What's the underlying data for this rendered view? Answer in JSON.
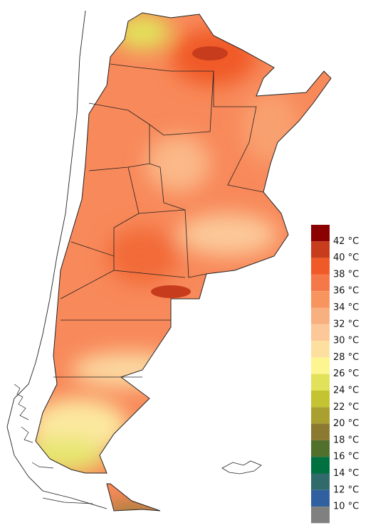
{
  "legend": {
    "labels": [
      "42 °C",
      "40 °C",
      "38 °C",
      "36 °C",
      "34 °C",
      "32 °C",
      "30 °C",
      "28 °C",
      "26 °C",
      "24 °C",
      "22 °C",
      "20 °C",
      "18 °C",
      "16 °C",
      "14 °C",
      "12 °C",
      "10 °C"
    ],
    "colors": [
      "#8b0000",
      "#c83c1e",
      "#f05a28",
      "#f57848",
      "#f8955f",
      "#f9b080",
      "#fcc898",
      "#fde0a0",
      "#fcf590",
      "#e2e25a",
      "#c4c432",
      "#aaa030",
      "#8c7a30",
      "#50702c",
      "#007040",
      "#306a6a",
      "#3060a0",
      "#808080"
    ]
  }
}
